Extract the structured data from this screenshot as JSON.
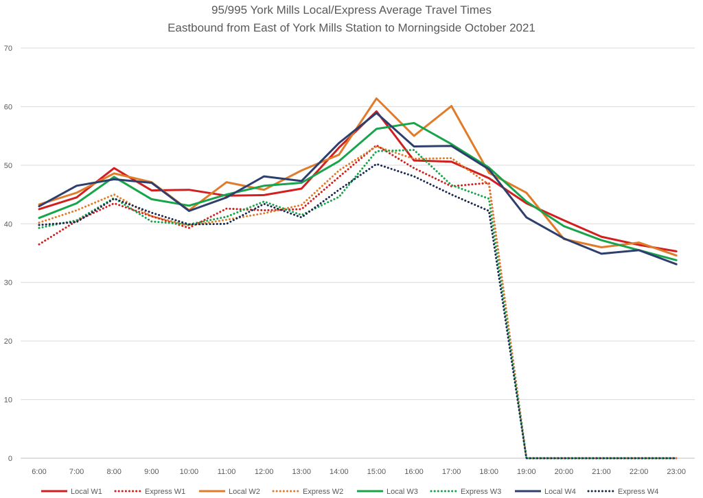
{
  "chart_data": {
    "type": "line",
    "title": "95/995 York Mills Local/Express Average Travel Times",
    "subtitle": "Eastbound from East of York Mills Station to Morningside October 2021",
    "xlabel": "",
    "ylabel": "",
    "ylim": [
      0,
      70
    ],
    "yticks": [
      0,
      10,
      20,
      30,
      40,
      50,
      60,
      70
    ],
    "grid": true,
    "legend_position": "bottom",
    "categories": [
      "6:00",
      "7:00",
      "8:00",
      "9:00",
      "10:00",
      "11:00",
      "12:00",
      "13:00",
      "14:00",
      "15:00",
      "16:00",
      "17:00",
      "18:00",
      "19:00",
      "20:00",
      "21:00",
      "22:00",
      "23:00"
    ],
    "series": [
      {
        "name": "Local W1",
        "style": "solid",
        "color": "#d11f1f",
        "values": [
          42.5,
          44.5,
          49.5,
          45.7,
          45.8,
          44.8,
          44.9,
          46.0,
          53.0,
          59.2,
          50.8,
          50.6,
          47.8,
          43.5,
          40.6,
          37.8,
          36.4,
          35.3
        ]
      },
      {
        "name": "Express W1",
        "style": "dotted",
        "color": "#d11f1f",
        "values": [
          36.5,
          40.5,
          43.5,
          41.3,
          39.3,
          42.6,
          42.3,
          42.5,
          48.0,
          53.4,
          49.5,
          46.4,
          47.0,
          0,
          0,
          0,
          0,
          0
        ]
      },
      {
        "name": "Local W2",
        "style": "solid",
        "color": "#e07b2a",
        "values": [
          43.3,
          45.3,
          48.6,
          47.1,
          42.3,
          47.1,
          45.8,
          49.1,
          51.8,
          61.4,
          55.0,
          60.1,
          48.7,
          45.3,
          37.4,
          36.0,
          36.8,
          34.6
        ]
      },
      {
        "name": "Express W2",
        "style": "dotted",
        "color": "#e07b2a",
        "values": [
          40.2,
          42.3,
          45.0,
          41.3,
          39.7,
          40.7,
          41.8,
          43.2,
          49.1,
          53.2,
          51.1,
          51.2,
          46.7,
          0,
          0,
          0,
          0,
          0
        ]
      },
      {
        "name": "Local W3",
        "style": "solid",
        "color": "#18a44a",
        "values": [
          41.0,
          43.5,
          48.0,
          44.2,
          43.1,
          45.0,
          46.5,
          47.0,
          50.7,
          56.2,
          57.2,
          53.6,
          49.6,
          43.8,
          39.6,
          37.2,
          35.5,
          33.8
        ]
      },
      {
        "name": "Express W3",
        "style": "dotted",
        "color": "#18a44a",
        "values": [
          39.3,
          40.6,
          44.4,
          40.4,
          39.9,
          41.2,
          43.8,
          41.5,
          44.6,
          52.4,
          52.6,
          46.6,
          44.3,
          0,
          0,
          0,
          0,
          0
        ]
      },
      {
        "name": "Local W4",
        "style": "solid",
        "color": "#2e3f6e",
        "values": [
          43.0,
          46.5,
          47.6,
          47.0,
          42.2,
          44.5,
          48.1,
          47.3,
          53.8,
          58.9,
          53.2,
          53.3,
          49.3,
          41.1,
          37.5,
          34.9,
          35.5,
          33.1
        ]
      },
      {
        "name": "Express W4",
        "style": "dotted",
        "color": "#1c2a52",
        "values": [
          39.8,
          40.3,
          44.3,
          41.9,
          39.9,
          40.0,
          43.4,
          41.1,
          45.8,
          50.2,
          48.1,
          45.0,
          42.2,
          0,
          0,
          0,
          0,
          0
        ]
      }
    ]
  }
}
